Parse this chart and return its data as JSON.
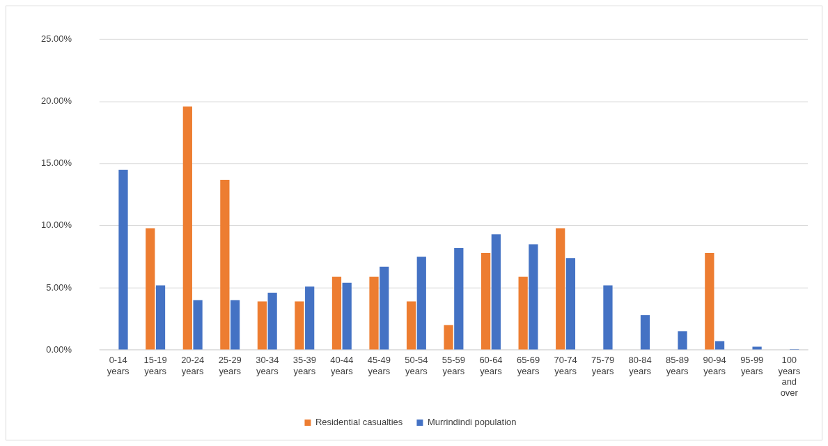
{
  "chart_data": {
    "type": "bar",
    "categories": [
      "0-14 years",
      "15-19 years",
      "20-24 years",
      "25-29 years",
      "30-34 years",
      "35-39 years",
      "40-44 years",
      "45-49 years",
      "50-54 years",
      "55-59 years",
      "60-64 years",
      "65-69 years",
      "70-74 years",
      "75-79 years",
      "80-84 years",
      "85-89 years",
      "90-94 years",
      "95-99 years",
      "100 years and over"
    ],
    "series": [
      {
        "name": "Residential casualties",
        "color": "#ed7d31",
        "values": [
          0,
          9.8,
          19.6,
          13.7,
          3.9,
          3.9,
          5.9,
          5.9,
          3.9,
          2.0,
          7.8,
          5.9,
          9.8,
          0,
          0,
          0,
          7.8,
          0,
          0
        ]
      },
      {
        "name": "Murrindindi population",
        "color": "#4472c4",
        "values": [
          14.5,
          5.2,
          4.0,
          4.0,
          4.6,
          5.1,
          5.4,
          6.7,
          7.5,
          8.2,
          9.3,
          8.5,
          7.4,
          5.2,
          2.8,
          1.5,
          0.7,
          0.25,
          0.05
        ]
      }
    ],
    "ylim": [
      0,
      25
    ],
    "yticks": [
      {
        "value": 0,
        "label": "0.00%"
      },
      {
        "value": 5,
        "label": "5.00%"
      },
      {
        "value": 10,
        "label": "10.00%"
      },
      {
        "value": 15,
        "label": "15.00%"
      },
      {
        "value": 20,
        "label": "20.00%"
      },
      {
        "value": 25,
        "label": "25.00%"
      }
    ],
    "grid": "y",
    "legend": "bottom"
  }
}
